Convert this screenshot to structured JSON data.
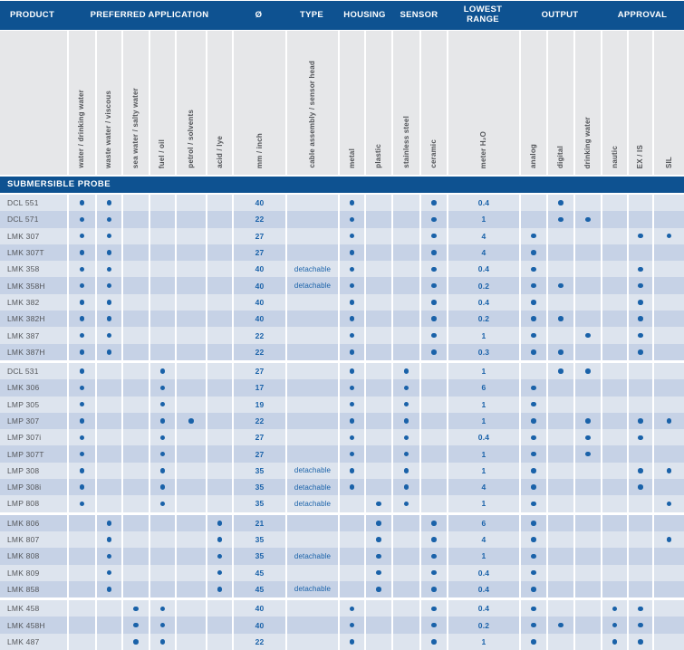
{
  "colors": {
    "blue": "#0e5291",
    "dotblue": "#1a62a9",
    "rowlight": "#dde4ee",
    "rowdark": "#c6d2e6",
    "labelbg": "#e6e7e9",
    "labeltext": "#54565a"
  },
  "header": {
    "groups": [
      "PRODUCT",
      "PREFERRED APPLICATION",
      "Ø",
      "TYPE",
      "HOUSING",
      "SENSOR",
      "LOWEST\nRANGE",
      "OUTPUT",
      "APPROVAL"
    ]
  },
  "columns": [
    {
      "key": "product",
      "label": "",
      "kind": "text"
    },
    {
      "key": "water",
      "label": "water / drinking water",
      "kind": "dot"
    },
    {
      "key": "waste",
      "label": "waste water / viscous",
      "kind": "dot"
    },
    {
      "key": "sea",
      "label": "sea water / salty water",
      "kind": "dot"
    },
    {
      "key": "fuel",
      "label": "fuel / oil",
      "kind": "dot"
    },
    {
      "key": "petrol",
      "label": "petrol / solvents",
      "kind": "dot"
    },
    {
      "key": "acid",
      "label": "acid / lye",
      "kind": "dot"
    },
    {
      "key": "diameter",
      "label": "mm / inch",
      "kind": "value"
    },
    {
      "key": "type",
      "label": "cable assembly / sensor head",
      "kind": "value"
    },
    {
      "key": "metal",
      "label": "metal",
      "kind": "dot"
    },
    {
      "key": "plastic",
      "label": "plastic",
      "kind": "dot"
    },
    {
      "key": "stainless",
      "label": "stainless steel",
      "kind": "dot"
    },
    {
      "key": "ceramic",
      "label": "ceramic",
      "kind": "dot"
    },
    {
      "key": "lowest",
      "label": "meter H₂O",
      "kind": "value"
    },
    {
      "key": "analog",
      "label": "analog",
      "kind": "dot"
    },
    {
      "key": "digital",
      "label": "digital",
      "kind": "dot"
    },
    {
      "key": "drinking",
      "label": "drinking water",
      "kind": "dot"
    },
    {
      "key": "nautic",
      "label": "nautic",
      "kind": "dot"
    },
    {
      "key": "exis",
      "label": "EX / IS",
      "kind": "dot"
    },
    {
      "key": "sil",
      "label": "SIL",
      "kind": "dot"
    }
  ],
  "section_title": "SUBMERSIBLE PROBE",
  "groups": [
    {
      "rows": [
        {
          "product": "DCL 551",
          "dots": [
            "water",
            "waste",
            "metal",
            "ceramic",
            "digital"
          ],
          "diameter": "40",
          "type": "",
          "lowest": "0.4"
        },
        {
          "product": "DCL 571",
          "dots": [
            "water",
            "waste",
            "metal",
            "ceramic",
            "digital",
            "drinking"
          ],
          "diameter": "22",
          "type": "",
          "lowest": "1"
        },
        {
          "product": "LMK 307",
          "dots": [
            "water",
            "waste",
            "metal",
            "ceramic",
            "analog",
            "exis",
            "sil"
          ],
          "diameter": "27",
          "type": "",
          "lowest": "4"
        },
        {
          "product": "LMK 307T",
          "dots": [
            "water",
            "waste",
            "metal",
            "ceramic",
            "analog"
          ],
          "diameter": "27",
          "type": "",
          "lowest": "4"
        },
        {
          "product": "LMK 358",
          "dots": [
            "water",
            "waste",
            "metal",
            "ceramic",
            "analog",
            "exis"
          ],
          "diameter": "40",
          "type": "detachable",
          "lowest": "0.4"
        },
        {
          "product": "LMK 358H",
          "dots": [
            "water",
            "waste",
            "metal",
            "ceramic",
            "analog",
            "digital",
            "exis"
          ],
          "diameter": "40",
          "type": "detachable",
          "lowest": "0.2"
        },
        {
          "product": "LMK 382",
          "dots": [
            "water",
            "waste",
            "metal",
            "ceramic",
            "analog",
            "exis"
          ],
          "diameter": "40",
          "type": "",
          "lowest": "0.4"
        },
        {
          "product": "LMK 382H",
          "dots": [
            "water",
            "waste",
            "metal",
            "ceramic",
            "analog",
            "digital",
            "exis"
          ],
          "diameter": "40",
          "type": "",
          "lowest": "0.2"
        },
        {
          "product": "LMK 387",
          "dots": [
            "water",
            "waste",
            "metal",
            "ceramic",
            "analog",
            "drinking",
            "exis"
          ],
          "diameter": "22",
          "type": "",
          "lowest": "1"
        },
        {
          "product": "LMK 387H",
          "dots": [
            "water",
            "waste",
            "metal",
            "ceramic",
            "analog",
            "digital",
            "exis"
          ],
          "diameter": "22",
          "type": "",
          "lowest": "0.3"
        }
      ]
    },
    {
      "rows": [
        {
          "product": "DCL 531",
          "dots": [
            "water",
            "fuel",
            "metal",
            "stainless",
            "digital",
            "drinking"
          ],
          "diameter": "27",
          "type": "",
          "lowest": "1"
        },
        {
          "product": "LMK 306",
          "dots": [
            "water",
            "fuel",
            "metal",
            "stainless",
            "analog"
          ],
          "diameter": "17",
          "type": "",
          "lowest": "6"
        },
        {
          "product": "LMP 305",
          "dots": [
            "water",
            "fuel",
            "metal",
            "stainless",
            "analog"
          ],
          "diameter": "19",
          "type": "",
          "lowest": "1"
        },
        {
          "product": "LMP 307",
          "dots": [
            "water",
            "fuel",
            "petrol",
            "metal",
            "stainless",
            "analog",
            "drinking",
            "exis",
            "sil"
          ],
          "diameter": "22",
          "type": "",
          "lowest": "1"
        },
        {
          "product": "LMP 307i",
          "dots": [
            "water",
            "fuel",
            "metal",
            "stainless",
            "analog",
            "drinking",
            "exis"
          ],
          "diameter": "27",
          "type": "",
          "lowest": "0.4"
        },
        {
          "product": "LMP 307T",
          "dots": [
            "water",
            "fuel",
            "metal",
            "stainless",
            "analog",
            "drinking"
          ],
          "diameter": "27",
          "type": "",
          "lowest": "1"
        },
        {
          "product": "LMP 308",
          "dots": [
            "water",
            "fuel",
            "metal",
            "stainless",
            "analog",
            "exis",
            "sil"
          ],
          "diameter": "35",
          "type": "detachable",
          "lowest": "1"
        },
        {
          "product": "LMP 308i",
          "dots": [
            "water",
            "fuel",
            "metal",
            "stainless",
            "analog",
            "exis"
          ],
          "diameter": "35",
          "type": "detachable",
          "lowest": "4"
        },
        {
          "product": "LMP 808",
          "dots": [
            "water",
            "fuel",
            "plastic",
            "stainless",
            "analog",
            "sil"
          ],
          "diameter": "35",
          "type": "detachable",
          "lowest": "1"
        }
      ]
    },
    {
      "rows": [
        {
          "product": "LMK 806",
          "dots": [
            "waste",
            "acid",
            "plastic",
            "ceramic",
            "analog"
          ],
          "diameter": "21",
          "type": "",
          "lowest": "6"
        },
        {
          "product": "LMK 807",
          "dots": [
            "waste",
            "acid",
            "plastic",
            "ceramic",
            "analog",
            "sil"
          ],
          "diameter": "35",
          "type": "",
          "lowest": "4"
        },
        {
          "product": "LMK 808",
          "dots": [
            "waste",
            "acid",
            "plastic",
            "ceramic",
            "analog"
          ],
          "diameter": "35",
          "type": "detachable",
          "lowest": "1"
        },
        {
          "product": "LMK 809",
          "dots": [
            "waste",
            "acid",
            "plastic",
            "ceramic",
            "analog"
          ],
          "diameter": "45",
          "type": "",
          "lowest": "0.4"
        },
        {
          "product": "LMK 858",
          "dots": [
            "waste",
            "acid",
            "plastic",
            "ceramic",
            "analog"
          ],
          "diameter": "45",
          "type": "detachable",
          "lowest": "0.4"
        }
      ]
    },
    {
      "rows": [
        {
          "product": "LMK 458",
          "dots": [
            "sea",
            "fuel",
            "metal",
            "ceramic",
            "analog",
            "nautic",
            "exis"
          ],
          "diameter": "40",
          "type": "",
          "lowest": "0.4"
        },
        {
          "product": "LMK 458H",
          "dots": [
            "sea",
            "fuel",
            "metal",
            "ceramic",
            "analog",
            "digital",
            "nautic",
            "exis"
          ],
          "diameter": "40",
          "type": "",
          "lowest": "0.2"
        },
        {
          "product": "LMK 487",
          "dots": [
            "sea",
            "fuel",
            "metal",
            "ceramic",
            "analog",
            "nautic",
            "exis"
          ],
          "diameter": "22",
          "type": "",
          "lowest": "1"
        }
      ]
    }
  ]
}
